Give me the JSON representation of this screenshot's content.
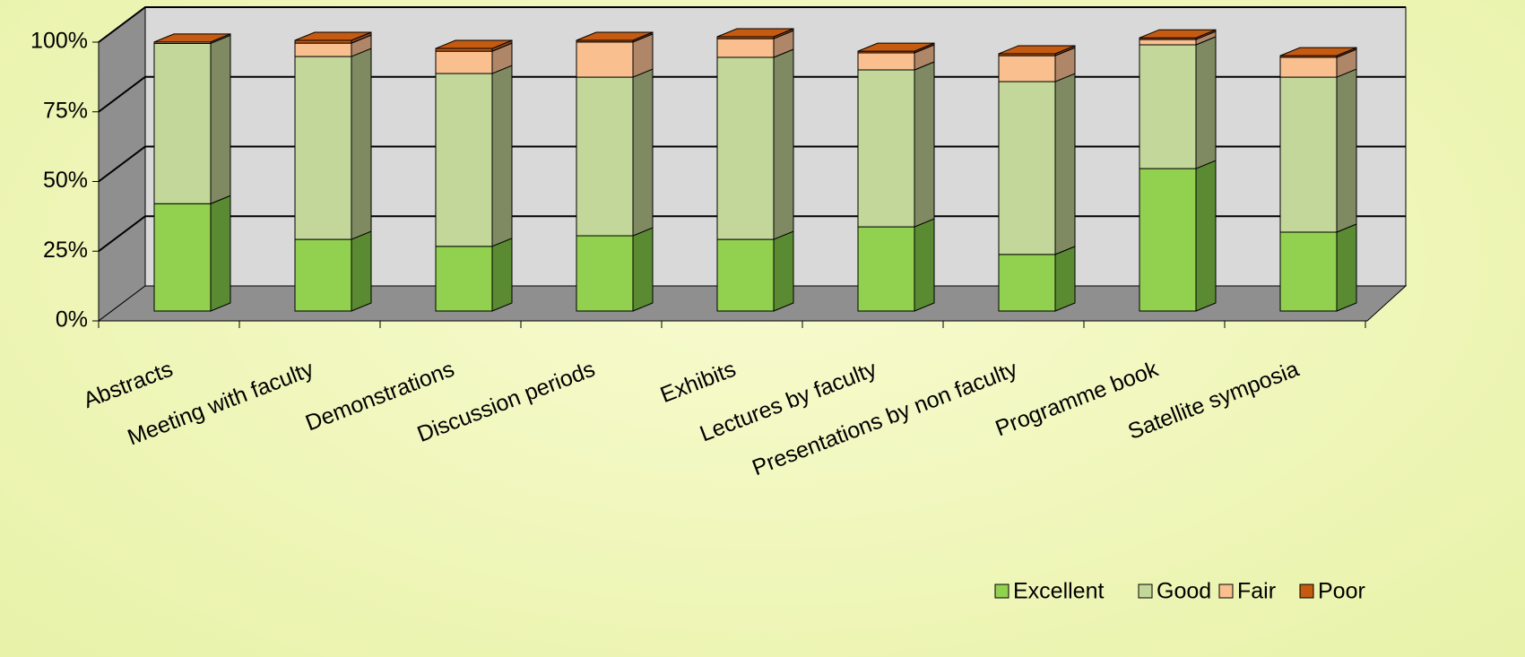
{
  "chart_data": {
    "type": "bar3d_stacked",
    "categories": [
      "Abstracts",
      "Meeting with faculty",
      "Demonstrations",
      "Discussion periods",
      "Exhibits",
      "Lectures by faculty",
      "Presentations by non faculty",
      "Programme book",
      "Satellite symposia"
    ],
    "series": [
      {
        "name": "Excellent",
        "color": "#92d050",
        "side": "#5a8a32",
        "values": [
          38.5,
          25.7,
          23.2,
          27,
          25.7,
          30.2,
          20.3,
          51.1,
          28.3
        ]
      },
      {
        "name": "Good",
        "color": "#c4d79b",
        "side": "#7f8a62",
        "values": [
          57.5,
          65.6,
          62,
          56.9,
          65.3,
          56.3,
          62,
          44.4,
          55.6
        ]
      },
      {
        "name": "Fair",
        "color": "#fabf8f",
        "side": "#b08668",
        "values": [
          0.5,
          4.8,
          8,
          12.6,
          6.7,
          6.1,
          9.3,
          1.9,
          7.1
        ]
      },
      {
        "name": "Poor",
        "color": "#c55a11",
        "side": "#8a4a20",
        "values": [
          0,
          1,
          1,
          0.6,
          0.7,
          0.6,
          0.7,
          0.6,
          0.6
        ]
      }
    ],
    "ylim": [
      0,
      100
    ],
    "yticks": [
      {
        "value": 0,
        "label": "0%"
      },
      {
        "value": 25,
        "label": "25%"
      },
      {
        "value": 50,
        "label": "50%"
      },
      {
        "value": 75,
        "label": "75%"
      },
      {
        "value": 100,
        "label": "100%"
      }
    ],
    "grid": true,
    "legend": "bottom-right"
  }
}
